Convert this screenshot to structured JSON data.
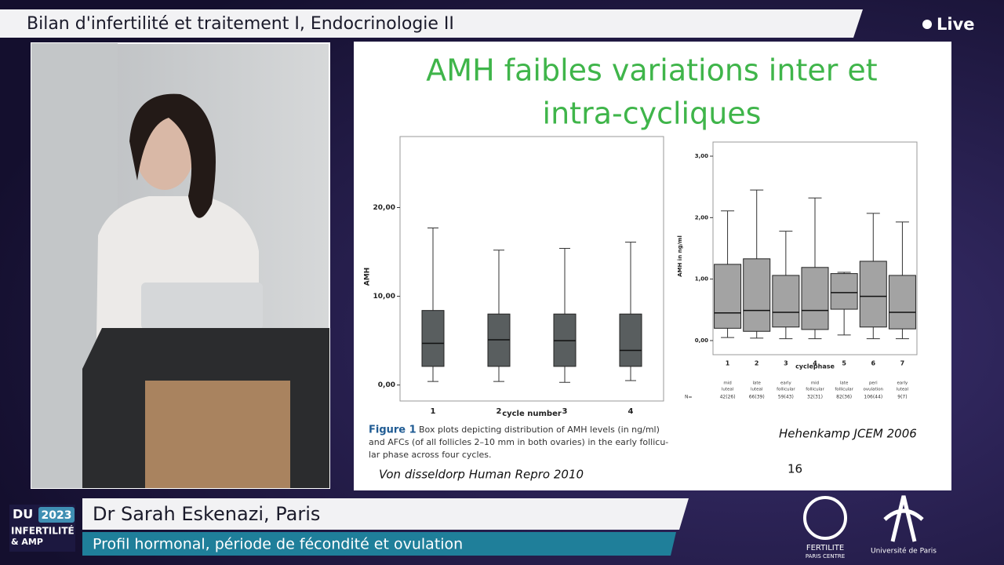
{
  "header": {
    "title": "Bilan d'infertilité et traitement I, Endocrinologie II",
    "live": "Live"
  },
  "slide": {
    "title_lines": [
      "AMH faibles variations inter et",
      "intra-cycliques"
    ],
    "charts": [
      {
        "type": "boxplot",
        "y_label": "AMH",
        "x_label": "cycle number",
        "categories": [
          "1",
          "2",
          "3",
          "4"
        ],
        "ylim": [
          -1.8,
          28
        ],
        "yticks": [
          {
            "value": 0,
            "label": "0,00"
          },
          {
            "value": 10,
            "label": "10,00"
          },
          {
            "value": 20,
            "label": "20,00"
          }
        ],
        "color": "#595e5f",
        "boxes": [
          {
            "min": 0.4,
            "q1": 2.1,
            "median": 4.7,
            "q3": 8.4,
            "max": 17.7
          },
          {
            "min": 0.4,
            "q1": 2.1,
            "median": 5.1,
            "q3": 8.0,
            "max": 15.2
          },
          {
            "min": 0.3,
            "q1": 2.1,
            "median": 5.0,
            "q3": 8.0,
            "max": 15.4
          },
          {
            "min": 0.5,
            "q1": 2.1,
            "median": 3.9,
            "q3": 8.0,
            "max": 16.1
          }
        ]
      },
      {
        "type": "boxplot",
        "y_label": "AMH in ng/ml",
        "x_label": "cyclephase",
        "categories": [
          "1",
          "2",
          "3",
          "4",
          "5",
          "6",
          "7"
        ],
        "ylim": [
          -0.23,
          3.23
        ],
        "yticks": [
          {
            "value": 0,
            "label": "0,00"
          },
          {
            "value": 1,
            "label": "1,00"
          },
          {
            "value": 2,
            "label": "2,00"
          },
          {
            "value": 3,
            "label": "3,00"
          }
        ],
        "color": "#a3a3a3",
        "phases": [
          [
            "mid",
            "luteal"
          ],
          [
            "late",
            "luteal"
          ],
          [
            "early",
            "follicular"
          ],
          [
            "mid",
            "follicular"
          ],
          [
            "late",
            "follicular"
          ],
          [
            "peri",
            "ovulation"
          ],
          [
            "early",
            "luteal"
          ]
        ],
        "n_label": "N=",
        "n": [
          "42(26)",
          "66(39)",
          "59(43)",
          "32(31)",
          "82(36)",
          "106(44)",
          "9(7)"
        ],
        "boxes": [
          {
            "min": 0.05,
            "q1": 0.2,
            "median": 0.45,
            "q3": 1.24,
            "max": 2.11
          },
          {
            "min": 0.04,
            "q1": 0.15,
            "median": 0.49,
            "q3": 1.33,
            "max": 2.45
          },
          {
            "min": 0.03,
            "q1": 0.22,
            "median": 0.46,
            "q3": 1.06,
            "max": 1.78
          },
          {
            "min": 0.03,
            "q1": 0.18,
            "median": 0.49,
            "q3": 1.19,
            "max": 2.32
          },
          {
            "min": 0.09,
            "q1": 0.51,
            "median": 0.78,
            "q3": 1.09,
            "max": 1.11
          },
          {
            "min": 0.03,
            "q1": 0.22,
            "median": 0.72,
            "q3": 1.29,
            "max": 2.07
          },
          {
            "min": 0.03,
            "q1": 0.19,
            "median": 0.46,
            "q3": 1.06,
            "max": 1.93
          }
        ]
      }
    ],
    "caption": {
      "label": "Figure 1",
      "lines": [
        "Box plots depicting distribution of AMH levels (in ng/ml)",
        "and AFCs (of all follicles 2–10 mm in both ovaries) in the early follicu-",
        "lar phase across four cycles."
      ]
    },
    "source_left": "Von disseldorp Human Repro 2010",
    "source_right": "Hehenkamp JCEM 2006",
    "page": "16"
  },
  "lower_third": {
    "logo": {
      "du": "DU",
      "year": "2023",
      "line1": "INFERTILITÉ",
      "line2": "& AMP"
    },
    "name": "Dr Sarah Eskenazi, Paris",
    "subtitle": "Profil hormonal, période de fécondité et ovulation"
  },
  "logos": {
    "fertilite": "FERTILITE",
    "fertilite_sub": "PARIS CENTRE",
    "universite": "Université de Paris"
  }
}
